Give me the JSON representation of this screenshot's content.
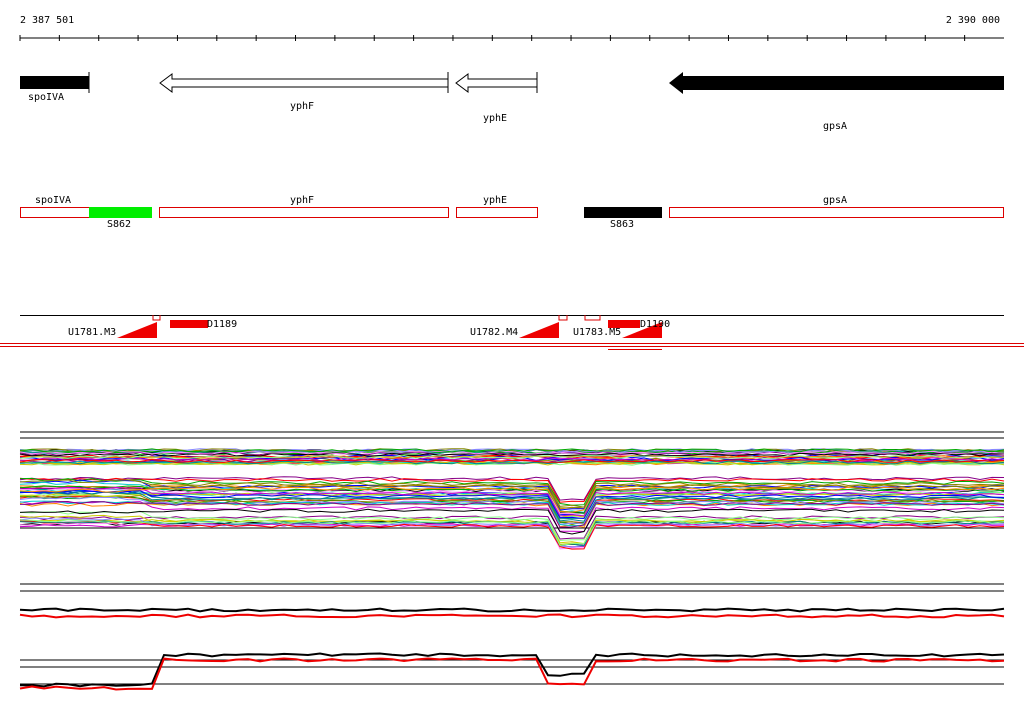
{
  "ruler": {
    "start": "2 387 501",
    "end": "2 390 000"
  },
  "genes": [
    {
      "label": "spoIVA"
    },
    {
      "label": "yphF"
    },
    {
      "label": "yphE"
    },
    {
      "label": "gpsA"
    }
  ],
  "annotations": [
    {
      "label": "spoIVA"
    },
    {
      "label": "yphF"
    },
    {
      "label": "yphE"
    },
    {
      "label": "gpsA"
    },
    {
      "label": "S862"
    },
    {
      "label": "S863"
    }
  ],
  "features": [
    {
      "label": "U1781.M3"
    },
    {
      "label": "D1189"
    },
    {
      "label": "U1782.M4"
    },
    {
      "label": "U1783.M5"
    },
    {
      "label": "D1190"
    }
  ]
}
